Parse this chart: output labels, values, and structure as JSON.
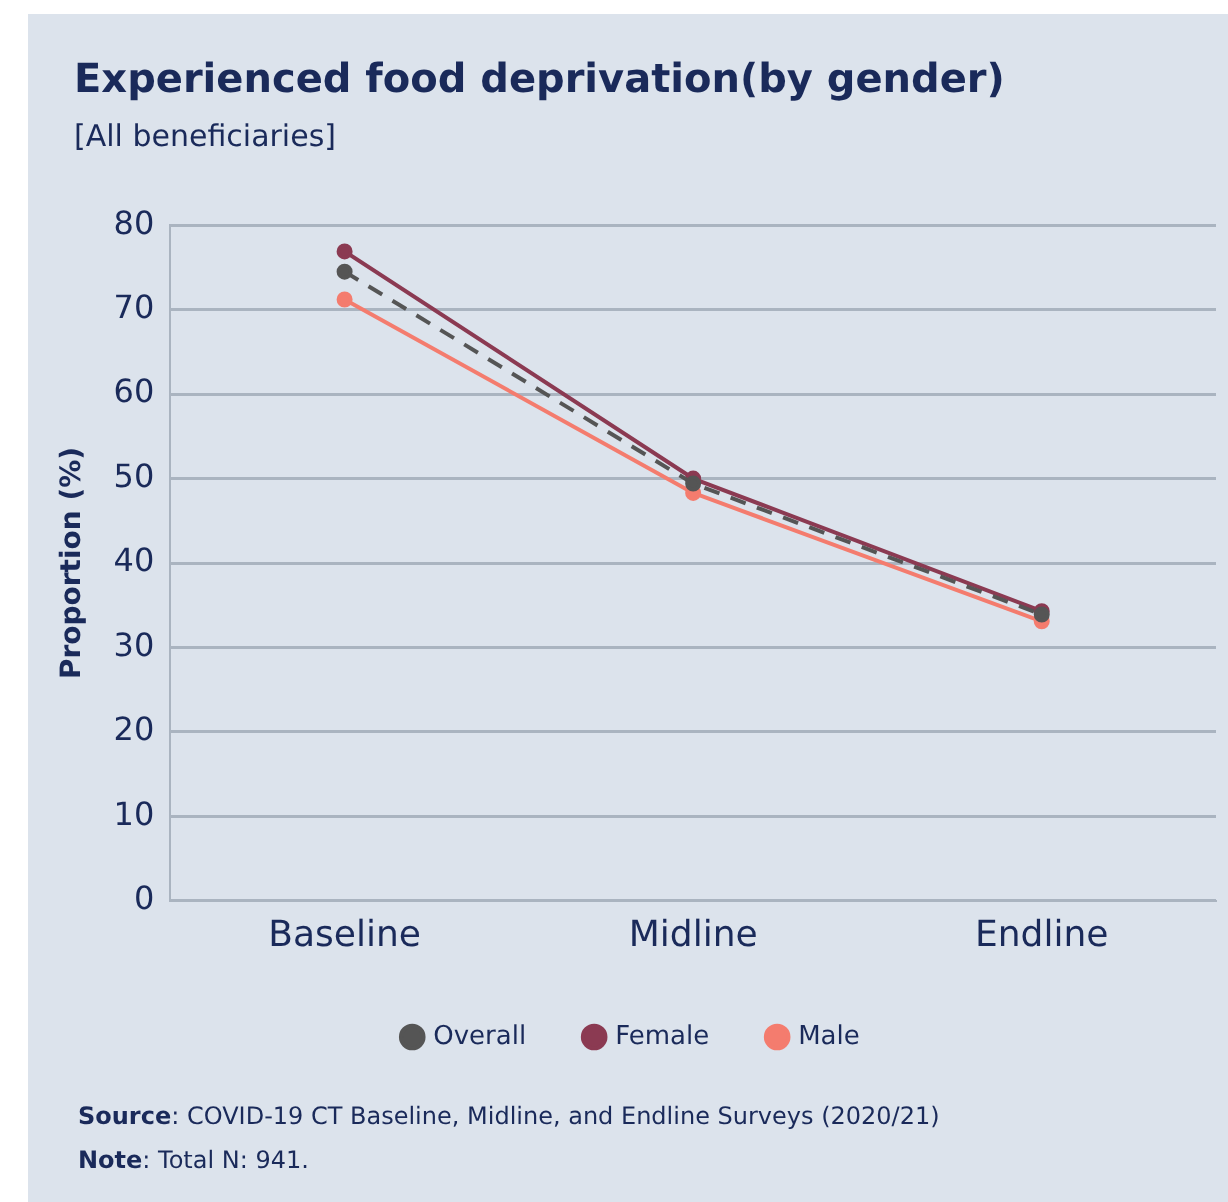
{
  "chart_data": {
    "type": "line",
    "title": "Experienced food deprivation(by gender)",
    "subtitle": "[All beneficiaries]",
    "ylabel": "Proportion (%)",
    "categories": [
      "Baseline",
      "Midline",
      "Endline"
    ],
    "series": [
      {
        "name": "Overall",
        "color": "#555555",
        "values": [
          74.5,
          49.4,
          33.9
        ],
        "line_style": "dashed"
      },
      {
        "name": "Female",
        "color": "#8b3a52",
        "values": [
          76.9,
          50.0,
          34.3
        ],
        "line_style": "solid"
      },
      {
        "name": "Male",
        "color": "#f47c6e",
        "values": [
          71.2,
          48.3,
          33.1
        ],
        "line_style": "solid"
      }
    ],
    "ylim": [
      0,
      80
    ],
    "yticks": [
      0,
      10,
      20,
      30,
      40,
      50,
      60,
      70,
      80
    ],
    "grid": "y",
    "legend": "bottom",
    "marker": "circle",
    "annotations": [
      "Source: COVID-19 CT Baseline, Midline, and Endline Surveys (2020/21)",
      "Note: Total N: 941."
    ]
  }
}
